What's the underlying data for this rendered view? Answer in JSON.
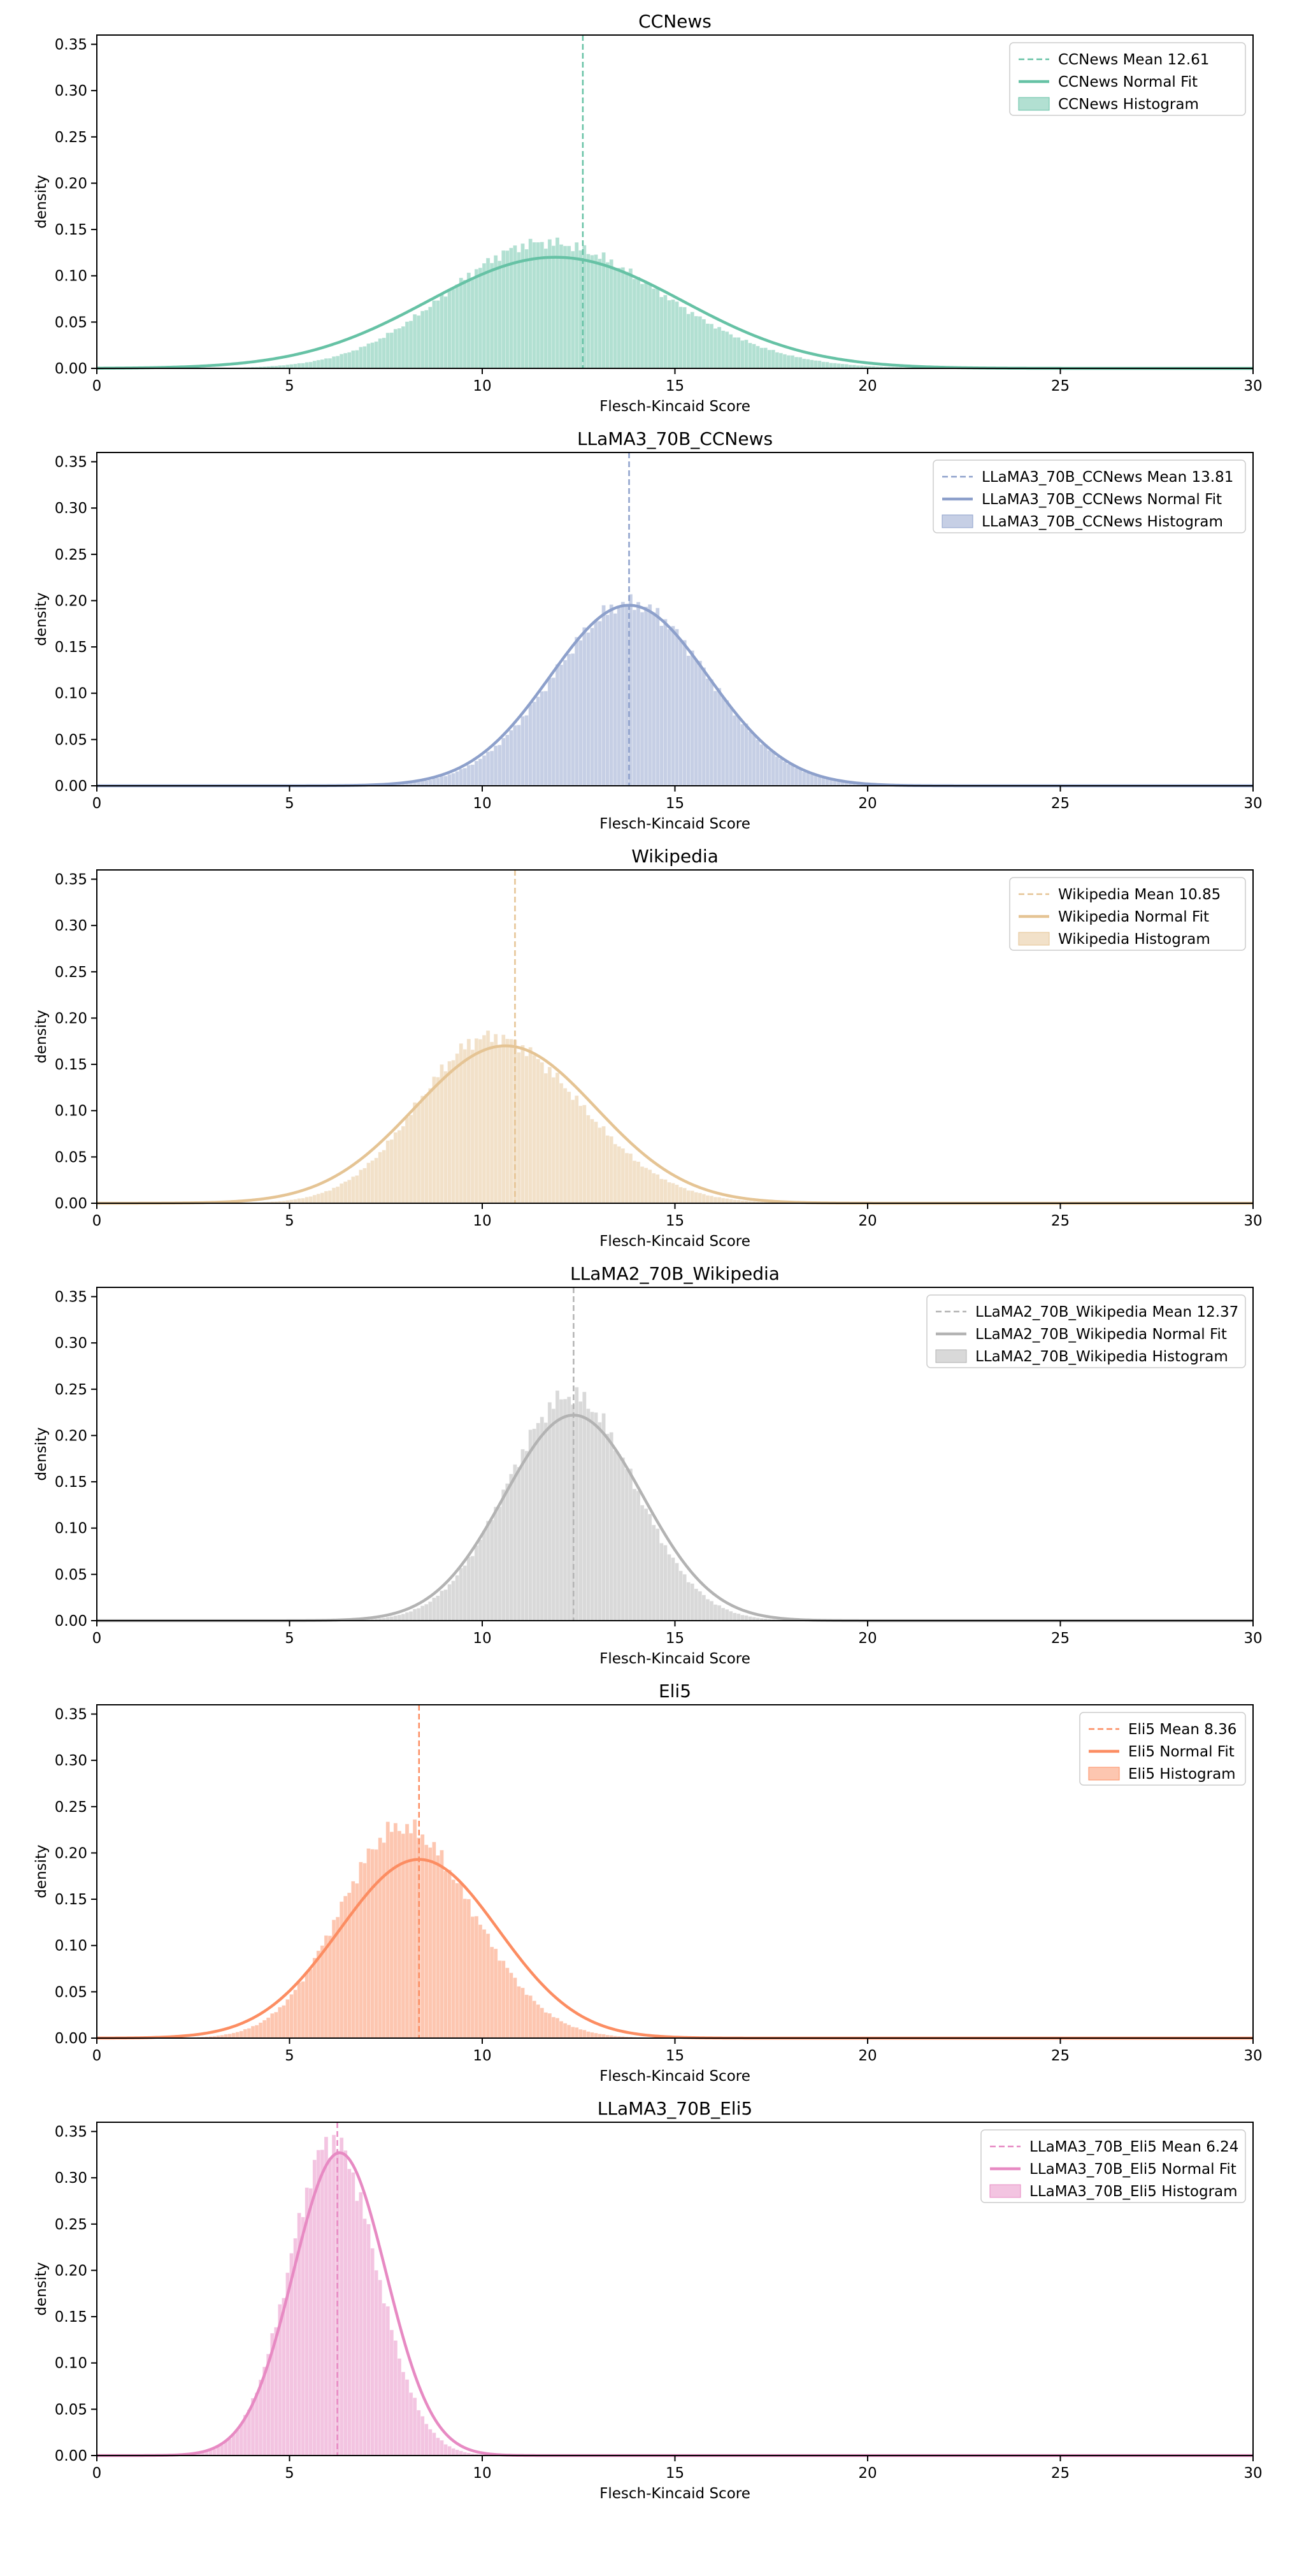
{
  "chart_data": [
    {
      "type": "bar",
      "title": "CCNews",
      "xlabel": "Flesch-Kincaid Score",
      "ylabel": "density",
      "xlim": [
        0,
        30
      ],
      "ylim": [
        0,
        0.36
      ],
      "xticks": [
        "0",
        "5",
        "10",
        "15",
        "20",
        "25",
        "30"
      ],
      "yticks": [
        "0.00",
        "0.05",
        "0.10",
        "0.15",
        "0.20",
        "0.25",
        "0.30",
        "0.35"
      ],
      "color": "#66c2a5",
      "mean": 12.61,
      "fit_mu": 11.9,
      "fit_sigma": 3.3,
      "fit_peak": 0.12,
      "hist_mu": 11.6,
      "hist_sigma_left": 2.5,
      "hist_sigma_right": 3.0,
      "hist_peak": 0.136,
      "hist_xmin": 2.5,
      "hist_xmax": 27.5,
      "legend_position": "top-right",
      "legend": [
        "CCNews Mean 12.61",
        "CCNews Normal Fit",
        "CCNews Histogram"
      ]
    },
    {
      "type": "bar",
      "title": "LLaMA3_70B_CCNews",
      "xlabel": "Flesch-Kincaid Score",
      "ylabel": "density",
      "xlim": [
        0,
        30
      ],
      "ylim": [
        0,
        0.36
      ],
      "xticks": [
        "0",
        "5",
        "10",
        "15",
        "20",
        "25",
        "30"
      ],
      "yticks": [
        "0.00",
        "0.05",
        "0.10",
        "0.15",
        "0.20",
        "0.25",
        "0.30",
        "0.35"
      ],
      "color": "#8da0cb",
      "mean": 13.81,
      "fit_mu": 13.81,
      "fit_sigma": 2.05,
      "fit_peak": 0.195,
      "hist_mu": 13.85,
      "hist_sigma_left": 2.0,
      "hist_sigma_right": 2.0,
      "hist_peak": 0.197,
      "hist_xmin": 5.5,
      "hist_xmax": 22.5,
      "legend_position": "top-right",
      "legend": [
        "LLaMA3_70B_CCNews Mean 13.81",
        "LLaMA3_70B_CCNews Normal Fit",
        "LLaMA3_70B_CCNews Histogram"
      ]
    },
    {
      "type": "bar",
      "title": "Wikipedia",
      "xlabel": "Flesch-Kincaid Score",
      "ylabel": "density",
      "xlim": [
        0,
        30
      ],
      "ylim": [
        0,
        0.36
      ],
      "xticks": [
        "0",
        "5",
        "10",
        "15",
        "20",
        "25",
        "30"
      ],
      "yticks": [
        "0.00",
        "0.05",
        "0.10",
        "0.15",
        "0.20",
        "0.25",
        "0.30",
        "0.35"
      ],
      "color": "#e5c494",
      "mean": 10.85,
      "fit_mu": 10.6,
      "fit_sigma": 2.35,
      "fit_peak": 0.17,
      "hist_mu": 10.2,
      "hist_sigma_left": 1.85,
      "hist_sigma_right": 2.3,
      "hist_peak": 0.18,
      "hist_xmin": 4.0,
      "hist_xmax": 21.0,
      "legend_position": "top-right",
      "legend": [
        "Wikipedia Mean 10.85",
        "Wikipedia Normal Fit",
        "Wikipedia Histogram"
      ]
    },
    {
      "type": "bar",
      "title": "LLaMA2_70B_Wikipedia",
      "xlabel": "Flesch-Kincaid Score",
      "ylabel": "density",
      "xlim": [
        0,
        30
      ],
      "ylim": [
        0,
        0.36
      ],
      "xticks": [
        "0",
        "5",
        "10",
        "15",
        "20",
        "25",
        "30"
      ],
      "yticks": [
        "0.00",
        "0.05",
        "0.10",
        "0.15",
        "0.20",
        "0.25",
        "0.30",
        "0.35"
      ],
      "color": "#b3b3b3",
      "mean": 12.37,
      "fit_mu": 12.37,
      "fit_sigma": 1.8,
      "fit_peak": 0.222,
      "hist_mu": 12.3,
      "hist_sigma_left": 1.65,
      "hist_sigma_right": 1.65,
      "hist_peak": 0.243,
      "hist_xmin": 5.5,
      "hist_xmax": 20.0,
      "legend_position": "top-right",
      "legend": [
        "LLaMA2_70B_Wikipedia Mean 12.37",
        "LLaMA2_70B_Wikipedia Normal Fit",
        "LLaMA2_70B_Wikipedia Histogram"
      ]
    },
    {
      "type": "bar",
      "title": "Eli5",
      "xlabel": "Flesch-Kincaid Score",
      "ylabel": "density",
      "xlim": [
        0,
        30
      ],
      "ylim": [
        0,
        0.36
      ],
      "xticks": [
        "0",
        "5",
        "10",
        "15",
        "20",
        "25",
        "30"
      ],
      "yticks": [
        "0.00",
        "0.05",
        "0.10",
        "0.15",
        "0.20",
        "0.25",
        "0.30",
        "0.35"
      ],
      "color": "#fc8d62",
      "mean": 8.36,
      "fit_mu": 8.36,
      "fit_sigma": 2.06,
      "fit_peak": 0.193,
      "hist_mu": 7.9,
      "hist_sigma_left": 1.6,
      "hist_sigma_right": 1.85,
      "hist_peak": 0.228,
      "hist_xmin": 2.5,
      "hist_xmax": 17.5,
      "legend_position": "top-right",
      "legend": [
        "Eli5 Mean 8.36",
        "Eli5 Normal Fit",
        "Eli5 Histogram"
      ]
    },
    {
      "type": "bar",
      "title": "LLaMA3_70B_Eli5",
      "xlabel": "Flesch-Kincaid Score",
      "ylabel": "density",
      "xlim": [
        0,
        30
      ],
      "ylim": [
        0,
        0.36
      ],
      "xticks": [
        "0",
        "5",
        "10",
        "15",
        "20",
        "25",
        "30"
      ],
      "yticks": [
        "0.00",
        "0.05",
        "0.10",
        "0.15",
        "0.20",
        "0.25",
        "0.30",
        "0.35"
      ],
      "color": "#e78ac3",
      "mean": 6.24,
      "fit_mu": 6.3,
      "fit_sigma": 1.2,
      "fit_peak": 0.327,
      "hist_mu": 6.1,
      "hist_sigma_left": 1.1,
      "hist_sigma_right": 1.15,
      "hist_peak": 0.34,
      "hist_xmin": 2.0,
      "hist_xmax": 11.5,
      "legend_position": "top-right",
      "legend": [
        "LLaMA3_70B_Eli5 Mean 6.24",
        "LLaMA3_70B_Eli5 Normal Fit",
        "LLaMA3_70B_Eli5 Histogram"
      ]
    }
  ]
}
